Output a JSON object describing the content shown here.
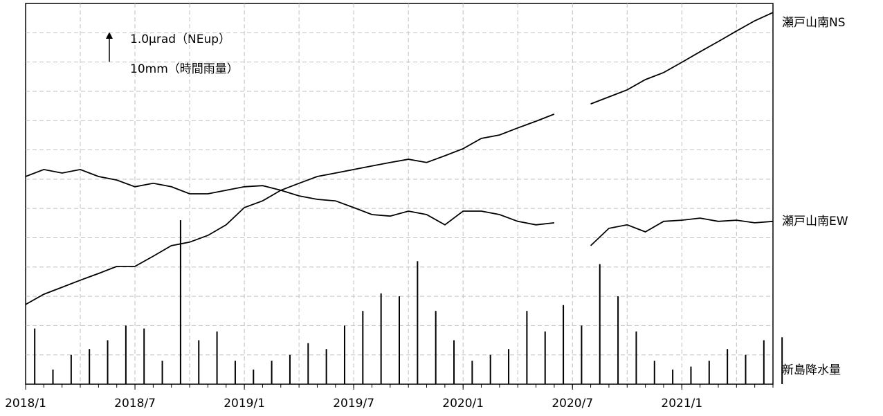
{
  "chart_data": {
    "type": "line",
    "annotations": [
      "1.0μrad（NEup）",
      "10mm（時間雨量）"
    ],
    "x": [
      "2018/1",
      "2018/2",
      "2018/3",
      "2018/4",
      "2018/5",
      "2018/6",
      "2018/7",
      "2018/8",
      "2018/9",
      "2018/10",
      "2018/11",
      "2018/12",
      "2019/1",
      "2019/2",
      "2019/3",
      "2019/4",
      "2019/5",
      "2019/6",
      "2019/7",
      "2019/8",
      "2019/9",
      "2019/10",
      "2019/11",
      "2019/12",
      "2020/1",
      "2020/2",
      "2020/3",
      "2020/4",
      "2020/5",
      "2020/6",
      "2020/7",
      "2020/8",
      "2020/9",
      "2020/10",
      "2020/11",
      "2020/12",
      "2021/1",
      "2021/2",
      "2021/3",
      "2021/4",
      "2021/5",
      "2021/6"
    ],
    "xlim": [
      "2018/1",
      "2021/6"
    ],
    "xticks": [
      "2018/1",
      "2018/7",
      "2019/1",
      "2019/7",
      "2020/1",
      "2020/7",
      "2021/1"
    ],
    "xgrid": [
      "2018/4",
      "2018/7",
      "2018/10",
      "2019/1",
      "2019/4",
      "2019/7",
      "2019/10",
      "2020/1",
      "2020/4",
      "2020/7",
      "2020/10",
      "2021/1",
      "2021/4"
    ],
    "ylim": [
      0,
      13
    ],
    "ygrid": [
      1,
      2,
      3,
      4,
      5,
      6,
      7,
      8,
      9,
      10,
      11,
      12
    ],
    "y2lim": [
      0,
      130
    ],
    "series": [
      {
        "name": "瀬戸山南NS",
        "color": "#000000",
        "values": [
          2.72,
          3.07,
          3.31,
          3.55,
          3.78,
          4.02,
          4.02,
          4.37,
          4.73,
          4.85,
          5.08,
          5.44,
          6.03,
          6.26,
          6.62,
          6.86,
          7.09,
          7.21,
          7.33,
          7.45,
          7.57,
          7.68,
          7.57,
          7.8,
          8.04,
          8.39,
          8.51,
          8.75,
          8.98,
          9.22,
          null,
          9.57,
          9.81,
          10.05,
          10.4,
          10.64,
          10.99,
          11.35,
          11.7,
          12.06,
          12.41,
          12.69
        ]
      },
      {
        "name": "瀬戸山南EW",
        "color": "#000000",
        "values": [
          7.09,
          7.33,
          7.21,
          7.33,
          7.09,
          6.97,
          6.74,
          6.86,
          6.74,
          6.5,
          6.5,
          6.62,
          6.74,
          6.78,
          6.62,
          6.43,
          6.31,
          6.26,
          6.03,
          5.79,
          5.74,
          5.91,
          5.79,
          5.44,
          5.91,
          5.91,
          5.79,
          5.56,
          5.44,
          5.51,
          null,
          4.73,
          5.32,
          5.44,
          5.2,
          5.56,
          5.6,
          5.67,
          5.56,
          5.6,
          5.51,
          5.56
        ]
      },
      {
        "name": "新島降水量",
        "color": "#000000",
        "axis": "y2",
        "type": "bar",
        "values": [
          19,
          5,
          10,
          12,
          15,
          20,
          19,
          8,
          56,
          15,
          18,
          8,
          5,
          8,
          10,
          14,
          12,
          20,
          25,
          31,
          30,
          42,
          25,
          15,
          8,
          10,
          12,
          25,
          18,
          27,
          20,
          41,
          30,
          18,
          8,
          5,
          6,
          8,
          12,
          10,
          15,
          16
        ]
      }
    ]
  }
}
